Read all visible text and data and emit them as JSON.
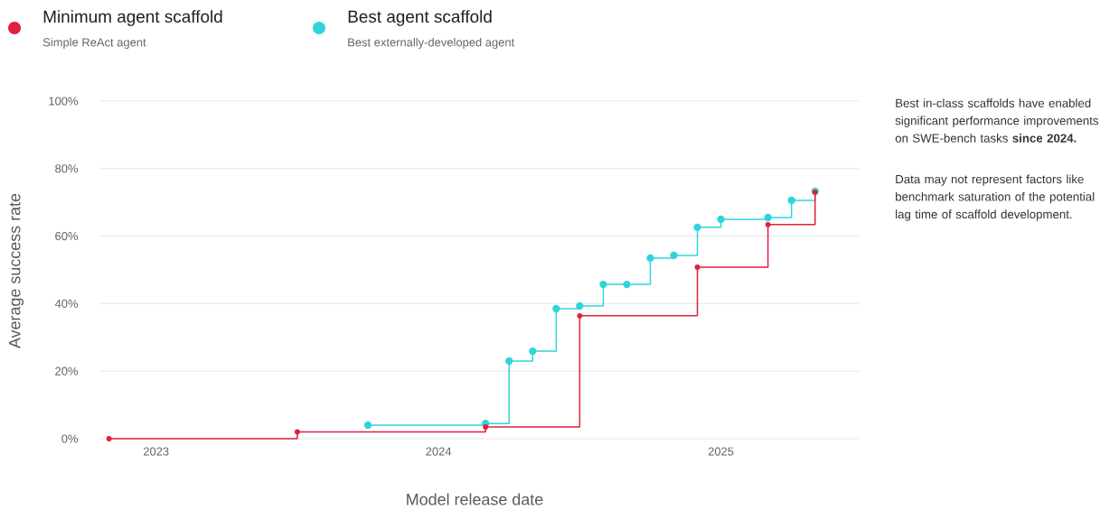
{
  "chart_data": {
    "type": "step",
    "xlabel": "Model release date",
    "ylabel": "Average success rate",
    "annotations": [
      "Simple ReAct agent",
      "Best externally-developed agent",
      "Best in-class scaffolds have enabled significant performance improvements on SWE-bench tasks **since 2024.**",
      "Data may not represent factors like benchmark saturation of the potential lag time of scaffold development."
    ],
    "series": [
      {
        "name": "Minimum agent scaffold",
        "color": "#e0203f",
        "x": [
          "2022-11",
          "2023-07",
          "2024-03",
          "2024-07",
          "2024-12",
          "2025-03",
          "2025-05"
        ],
        "values": [
          0,
          2,
          3.5,
          36.4,
          50.8,
          63.4,
          73
        ]
      },
      {
        "name": "Best agent scaffold",
        "color": "#30d5dc",
        "x": [
          "2023-10",
          "2024-03",
          "2024-04",
          "2024-05",
          "2024-06",
          "2024-07",
          "2024-08",
          "2024-09",
          "2024-10",
          "2024-11",
          "2024-12",
          "2025-01",
          "2025-03",
          "2025-04",
          "2025-05"
        ],
        "values": [
          4,
          4.5,
          23,
          25.9,
          38.5,
          39.3,
          45.7,
          45.7,
          53.5,
          54.3,
          62.6,
          65,
          65.5,
          70.6,
          73.3
        ]
      }
    ],
    "xlim": [
      "2022-10-19",
      "2025-06-27"
    ],
    "xticks": [
      "2023",
      "2024",
      "2025"
    ],
    "ylim": [
      0,
      100
    ],
    "yticks": [
      {
        "value": 0,
        "label": "0%"
      },
      {
        "value": 20,
        "label": "20%"
      },
      {
        "value": 40,
        "label": "40%"
      },
      {
        "value": 60,
        "label": "60%"
      },
      {
        "value": 80,
        "label": "80%"
      },
      {
        "value": 100,
        "label": "100%"
      }
    ],
    "grid": "y",
    "legend": "top left",
    "marker": "circle",
    "line_style": "solid"
  }
}
